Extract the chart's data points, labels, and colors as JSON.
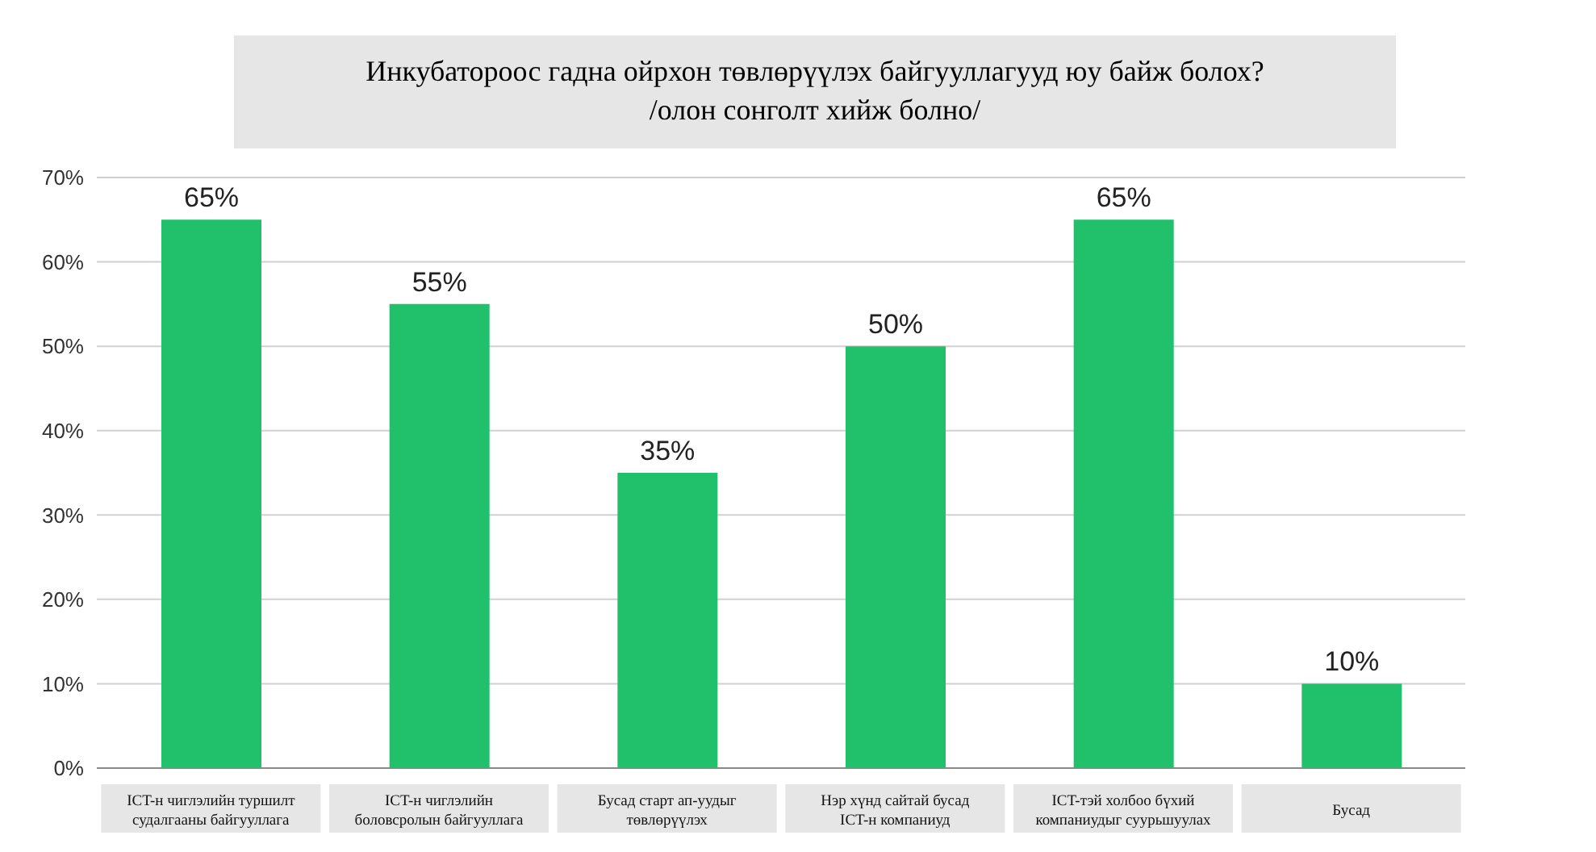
{
  "chart_data": {
    "type": "bar",
    "title": "Инкубатороос гадна ойрхон төвлөрүүлэх байгууллагууд юу байж болох?",
    "subtitle": "/олон сонголт хийж болно/",
    "categories": [
      "ICT-н чиглэлийн туршилт судалгааны байгууллага",
      "ICT-н чиглэлийн боловсролын байгууллага",
      "Бусад старт ап-уудыг төвлөрүүлэх",
      "Нэр хүнд сайтай бусад ICT-н компаниуд",
      "ICT-тэй холбоо бүхий компаниудыг суурьшуулах",
      "Бусад"
    ],
    "values": [
      65,
      55,
      35,
      50,
      65,
      10
    ],
    "value_labels": [
      "65%",
      "55%",
      "35%",
      "50%",
      "65%",
      "10%"
    ],
    "color": "#21c06b",
    "ylim": [
      0,
      70
    ],
    "yticks": [
      {
        "value": 0,
        "label": "0%"
      },
      {
        "value": 10,
        "label": "10%"
      },
      {
        "value": 20,
        "label": "20%"
      },
      {
        "value": 30,
        "label": "30%"
      },
      {
        "value": 40,
        "label": "40%"
      },
      {
        "value": 50,
        "label": "50%"
      },
      {
        "value": 60,
        "label": "60%"
      },
      {
        "value": 70,
        "label": "70%"
      }
    ],
    "grid": "y"
  }
}
